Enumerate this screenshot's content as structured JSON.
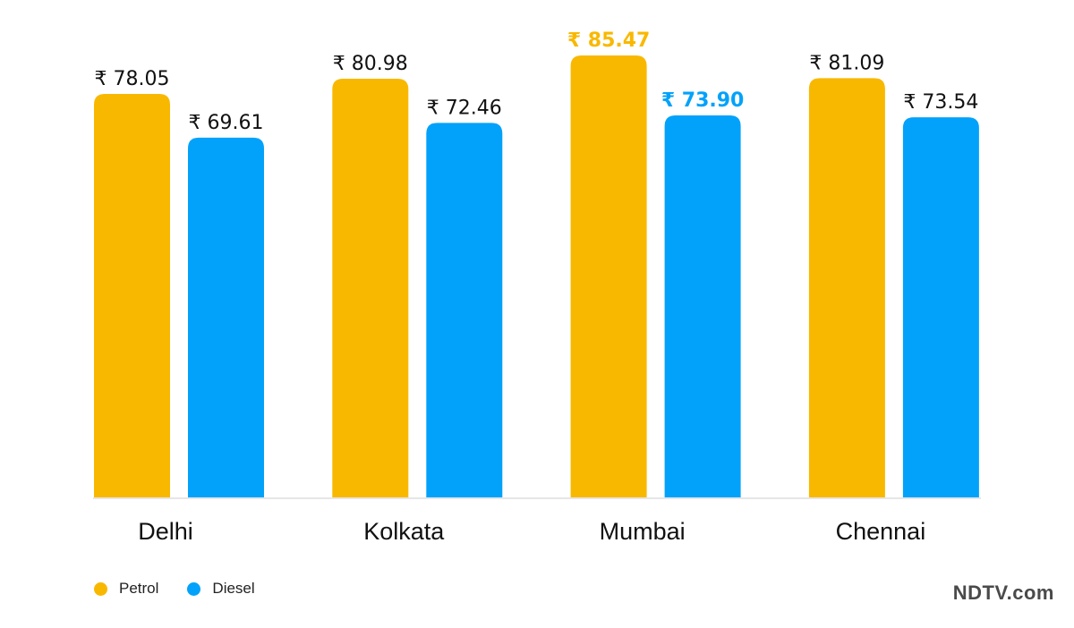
{
  "chart_data": {
    "type": "bar",
    "categories": [
      "Delhi",
      "Kolkata",
      "Mumbai",
      "Chennai"
    ],
    "series": [
      {
        "name": "Petrol",
        "color": "#F9B800",
        "values": [
          78.05,
          80.98,
          85.47,
          81.09
        ],
        "labels": [
          "₹ 78.05",
          "₹ 80.98",
          "₹ 85.47",
          "₹ 81.09"
        ]
      },
      {
        "name": "Diesel",
        "color": "#03A2FA",
        "values": [
          69.61,
          72.46,
          73.9,
          73.54
        ],
        "labels": [
          "₹ 69.61",
          "₹ 72.46",
          "₹ 73.90",
          "₹ 73.54"
        ]
      }
    ],
    "highlight_category": "Mumbai",
    "ylim": [
      0,
      85.47
    ],
    "grid": false,
    "legend_position": "bottom-left"
  },
  "brand": "NDTV.com"
}
